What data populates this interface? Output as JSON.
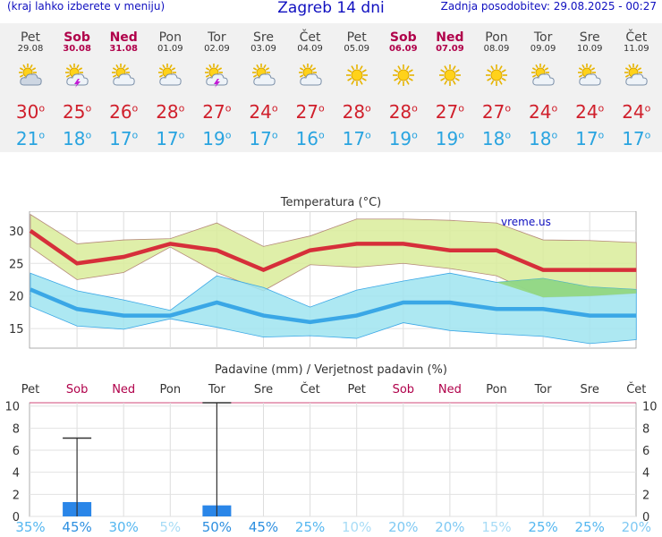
{
  "header": {
    "hint": "(kraj lahko izberete v meniju)",
    "title": "Zagreb 14 dni",
    "updated": "Zadnja posodobitev: 29.08.2025 - 00:27"
  },
  "days": [
    {
      "day": "Pet",
      "date": "29.08",
      "weekend": false,
      "icon": "cloudy-sun-icon",
      "max": "30",
      "min": "21"
    },
    {
      "day": "Sob",
      "date": "30.08",
      "weekend": true,
      "icon": "thunderstorm-sun-icon",
      "max": "25",
      "min": "18"
    },
    {
      "day": "Ned",
      "date": "31.08",
      "weekend": true,
      "icon": "partly-cloudy-icon",
      "max": "26",
      "min": "17"
    },
    {
      "day": "Pon",
      "date": "01.09",
      "weekend": false,
      "icon": "partly-cloudy-icon",
      "max": "28",
      "min": "17"
    },
    {
      "day": "Tor",
      "date": "02.09",
      "weekend": false,
      "icon": "thunderstorm-sun-icon",
      "max": "27",
      "min": "19"
    },
    {
      "day": "Sre",
      "date": "03.09",
      "weekend": false,
      "icon": "partly-cloudy-icon",
      "max": "24",
      "min": "17"
    },
    {
      "day": "Čet",
      "date": "04.09",
      "weekend": false,
      "icon": "partly-cloudy-icon",
      "max": "27",
      "min": "16"
    },
    {
      "day": "Pet",
      "date": "05.09",
      "weekend": false,
      "icon": "sun-icon",
      "max": "28",
      "min": "17"
    },
    {
      "day": "Sob",
      "date": "06.09",
      "weekend": true,
      "icon": "sun-icon",
      "max": "28",
      "min": "19"
    },
    {
      "day": "Ned",
      "date": "07.09",
      "weekend": true,
      "icon": "sun-icon",
      "max": "27",
      "min": "19"
    },
    {
      "day": "Pon",
      "date": "08.09",
      "weekend": false,
      "icon": "sun-icon",
      "max": "27",
      "min": "18"
    },
    {
      "day": "Tor",
      "date": "09.09",
      "weekend": false,
      "icon": "partly-cloudy-icon",
      "max": "24",
      "min": "18"
    },
    {
      "day": "Sre",
      "date": "10.09",
      "weekend": false,
      "icon": "partly-cloudy-icon",
      "max": "24",
      "min": "17"
    },
    {
      "day": "Čet",
      "date": "11.09",
      "weekend": false,
      "icon": "partly-cloudy-icon",
      "max": "24",
      "min": "17"
    }
  ],
  "colors": {
    "max": "#d62f3a",
    "min": "#3aa7e6",
    "max_band": "#d9ec9a",
    "min_band": "#9fe4f0",
    "overlap": "#8fd46f",
    "bar": "#2a86e8"
  },
  "chart_data": [
    {
      "type": "line",
      "title": "Temperatura (°C)",
      "watermark": "vreme.us",
      "categories": [
        "Pet",
        "Sob",
        "Ned",
        "Pon",
        "Tor",
        "Sre",
        "Čet",
        "Pet",
        "Sob",
        "Ned",
        "Pon",
        "Tor",
        "Sre",
        "Čet"
      ],
      "ylim": [
        12,
        33
      ],
      "yticks": [
        "15",
        "20",
        "25",
        "30"
      ],
      "series": [
        {
          "name": "max",
          "values": [
            30,
            25,
            26,
            28,
            27,
            24,
            27,
            28,
            28,
            27,
            27,
            24,
            24,
            24
          ],
          "upper": [
            32.5,
            28,
            28.6,
            28.8,
            31.2,
            27.6,
            29.2,
            31.8,
            31.8,
            31.6,
            31.2,
            28.6,
            28.5,
            28.2
          ],
          "lower": [
            27.5,
            22.5,
            23.6,
            27.5,
            23.6,
            20.8,
            24.8,
            24.4,
            25,
            24.2,
            23.1,
            19.8,
            20,
            20.4
          ]
        },
        {
          "name": "min",
          "values": [
            21,
            18,
            17,
            17,
            19,
            17,
            16,
            17,
            19,
            19,
            18,
            18,
            17,
            17
          ],
          "upper": [
            23.5,
            20.8,
            19.4,
            17.8,
            23.1,
            21.3,
            18.3,
            20.9,
            22.3,
            23.5,
            22.1,
            22.7,
            21.4,
            21
          ],
          "lower": [
            18.4,
            15.4,
            14.9,
            16.5,
            15.2,
            13.7,
            13.9,
            13.5,
            15.9,
            14.7,
            14.2,
            13.8,
            12.7,
            13.3
          ]
        }
      ]
    },
    {
      "type": "bar",
      "title": "Padavine (mm) / Verjetnost padavin (%)",
      "categories": [
        "Pet",
        "Sob",
        "Ned",
        "Pon",
        "Tor",
        "Sre",
        "Čet",
        "Pet",
        "Sob",
        "Ned",
        "Pon",
        "Tor",
        "Sre",
        "Čet"
      ],
      "ylim": [
        0,
        10.3
      ],
      "yticks": [
        "0",
        "2",
        "4",
        "6",
        "8",
        "10"
      ],
      "values": [
        0,
        1.3,
        0,
        0,
        1,
        0,
        0,
        0,
        0,
        0,
        0,
        0,
        0,
        0
      ],
      "error_upper": [
        null,
        7.1,
        null,
        null,
        10.3,
        null,
        null,
        null,
        null,
        null,
        null,
        null,
        null,
        null
      ],
      "probability": [
        "35%",
        "45%",
        "30%",
        "5%",
        "50%",
        "45%",
        "25%",
        "10%",
        "20%",
        "20%",
        "15%",
        "25%",
        "25%",
        "20%"
      ],
      "probability_colors": [
        "#55b7f0",
        "#2d8fe0",
        "#55b7f0",
        "#a8dcf6",
        "#2d8fe0",
        "#2d8fe0",
        "#55b7f0",
        "#a8dcf6",
        "#7fc9f3",
        "#7fc9f3",
        "#a8dcf6",
        "#55b7f0",
        "#55b7f0",
        "#7fc9f3"
      ]
    }
  ]
}
